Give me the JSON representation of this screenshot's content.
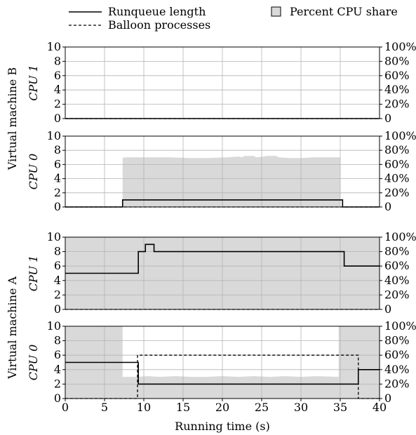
{
  "chart_data": {
    "type": "line",
    "legend": {
      "placement": "top",
      "entries": [
        {
          "label": "Runqueue length",
          "style": "solid"
        },
        {
          "label": "Balloon processes",
          "style": "dashed"
        },
        {
          "label": "Percent CPU share",
          "style": "filled-box"
        }
      ]
    },
    "xlabel": "Running time (s)",
    "xlim": [
      0,
      40
    ],
    "xticks": [
      0,
      5,
      10,
      15,
      20,
      25,
      30,
      35,
      40
    ],
    "ylim_left": [
      0,
      10
    ],
    "yticks_left": [
      "0",
      "2",
      "4",
      "6",
      "8",
      "10"
    ],
    "ylim_right": [
      0,
      100
    ],
    "yticks_right": [
      "0",
      "20%",
      "40%",
      "60%",
      "80%",
      "100%"
    ],
    "grid": true,
    "colors": {
      "share_fill": "#d9d9d9",
      "grid": "#b4b4b4",
      "line": "#000000"
    },
    "groups": [
      {
        "label": "Virtual machine B",
        "panels": [
          "B1",
          "B0"
        ]
      },
      {
        "label": "Virtual machine A",
        "panels": [
          "A1",
          "A0"
        ]
      }
    ],
    "panels": [
      {
        "id": "B1",
        "ylabel": "CPU 1",
        "cpu_share": [
          {
            "x": 0,
            "y": 0
          },
          {
            "x": 40,
            "y": 0
          }
        ],
        "runqueue": [
          {
            "x": 0,
            "y": 0
          },
          {
            "x": 40,
            "y": 0
          }
        ],
        "balloon": [
          {
            "x": 0,
            "y": 0
          },
          {
            "x": 40,
            "y": 0
          }
        ]
      },
      {
        "id": "B0",
        "ylabel": "CPU 0",
        "cpu_share": [
          {
            "x": 0,
            "y": 0
          },
          {
            "x": 7.3,
            "y": 0
          },
          {
            "x": 7.3,
            "y": 69
          },
          {
            "x": 7.6,
            "y": 70
          },
          {
            "x": 13.5,
            "y": 70
          },
          {
            "x": 16,
            "y": 69
          },
          {
            "x": 18,
            "y": 69
          },
          {
            "x": 20.5,
            "y": 70
          },
          {
            "x": 21.8,
            "y": 71
          },
          {
            "x": 22.2,
            "y": 71
          },
          {
            "x": 22.5,
            "y": 70
          },
          {
            "x": 22.8,
            "y": 72
          },
          {
            "x": 24,
            "y": 72
          },
          {
            "x": 24.3,
            "y": 70
          },
          {
            "x": 25.2,
            "y": 71
          },
          {
            "x": 25.7,
            "y": 72
          },
          {
            "x": 26.8,
            "y": 72
          },
          {
            "x": 27.2,
            "y": 70
          },
          {
            "x": 28.7,
            "y": 69
          },
          {
            "x": 30,
            "y": 69
          },
          {
            "x": 31.5,
            "y": 70
          },
          {
            "x": 35,
            "y": 70
          },
          {
            "x": 35,
            "y": 0
          },
          {
            "x": 40,
            "y": 0
          }
        ],
        "runqueue": [
          {
            "x": 0,
            "y": 0
          },
          {
            "x": 7.3,
            "y": 0
          },
          {
            "x": 7.3,
            "y": 1
          },
          {
            "x": 35.3,
            "y": 1
          },
          {
            "x": 35.3,
            "y": 0
          },
          {
            "x": 40,
            "y": 0
          }
        ],
        "balloon": [
          {
            "x": 0,
            "y": 0
          },
          {
            "x": 40,
            "y": 0
          }
        ]
      },
      {
        "id": "A1",
        "ylabel": "CPU 1",
        "cpu_share": [
          {
            "x": 0,
            "y": 100
          },
          {
            "x": 40,
            "y": 100
          }
        ],
        "runqueue": [
          {
            "x": 0,
            "y": 5
          },
          {
            "x": 9.3,
            "y": 5
          },
          {
            "x": 9.3,
            "y": 8
          },
          {
            "x": 10.2,
            "y": 8
          },
          {
            "x": 10.2,
            "y": 9
          },
          {
            "x": 11.3,
            "y": 9
          },
          {
            "x": 11.3,
            "y": 8
          },
          {
            "x": 35.5,
            "y": 8
          },
          {
            "x": 35.5,
            "y": 6
          },
          {
            "x": 40,
            "y": 6
          }
        ],
        "balloon": [
          {
            "x": 0,
            "y": 0
          },
          {
            "x": 40,
            "y": 0
          }
        ]
      },
      {
        "id": "A0",
        "ylabel": "CPU 0",
        "cpu_share": [
          {
            "x": 0,
            "y": 100
          },
          {
            "x": 7.3,
            "y": 100
          },
          {
            "x": 7.3,
            "y": 30
          },
          {
            "x": 9,
            "y": 30
          },
          {
            "x": 10.5,
            "y": 31
          },
          {
            "x": 12,
            "y": 30
          },
          {
            "x": 14,
            "y": 31
          },
          {
            "x": 16,
            "y": 30
          },
          {
            "x": 18,
            "y": 30
          },
          {
            "x": 20,
            "y": 31
          },
          {
            "x": 22,
            "y": 30
          },
          {
            "x": 24,
            "y": 31
          },
          {
            "x": 26,
            "y": 30
          },
          {
            "x": 28,
            "y": 31
          },
          {
            "x": 30,
            "y": 30
          },
          {
            "x": 32,
            "y": 31
          },
          {
            "x": 34.8,
            "y": 30
          },
          {
            "x": 34.8,
            "y": 100
          },
          {
            "x": 40,
            "y": 100
          }
        ],
        "runqueue": [
          {
            "x": 0,
            "y": 5
          },
          {
            "x": 9.3,
            "y": 5
          },
          {
            "x": 9.3,
            "y": 2
          },
          {
            "x": 37.3,
            "y": 2
          },
          {
            "x": 37.3,
            "y": 4
          },
          {
            "x": 40,
            "y": 4
          }
        ],
        "balloon": [
          {
            "x": 0,
            "y": 0
          },
          {
            "x": 9.2,
            "y": 0
          },
          {
            "x": 9.2,
            "y": 6
          },
          {
            "x": 37.3,
            "y": 6
          },
          {
            "x": 37.3,
            "y": 0
          },
          {
            "x": 40,
            "y": 0
          }
        ]
      }
    ]
  }
}
